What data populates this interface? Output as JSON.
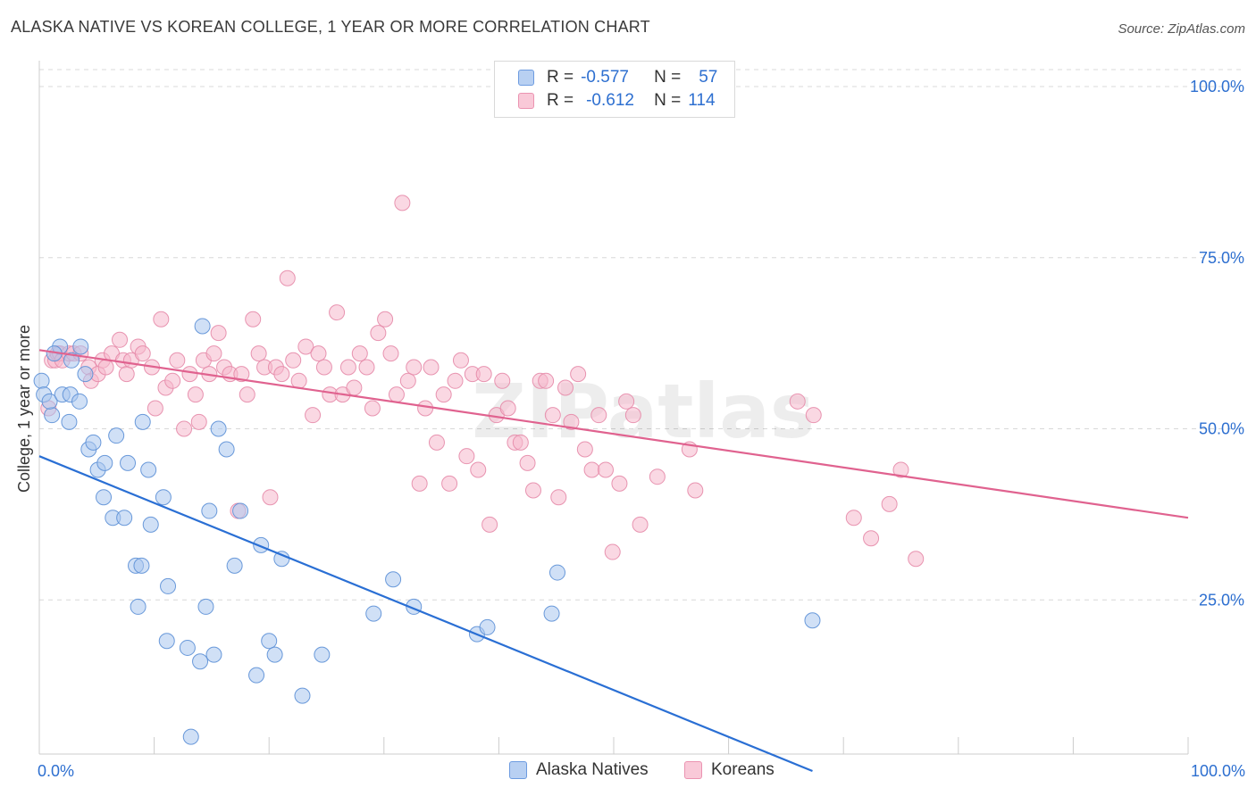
{
  "title": "ALASKA NATIVE VS KOREAN COLLEGE, 1 YEAR OR MORE CORRELATION CHART",
  "source": "Source: ZipAtlas.com",
  "watermark": "ZIPatlas",
  "legend_top": {
    "rows": [
      {
        "r_label": "R =",
        "r_value": "-0.577",
        "n_label": "N =",
        "n_value": "57"
      },
      {
        "r_label": "R =",
        "r_value": "-0.612",
        "n_label": "N =",
        "n_value": "114"
      }
    ]
  },
  "legend_bottom": [
    "Alaska Natives",
    "Koreans"
  ],
  "colors": {
    "blue_fill": "#a9c6ef",
    "blue_stroke": "#5b8fd6",
    "blue_line": "#2a6fd4",
    "pink_fill": "#f5b8cc",
    "pink_stroke": "#e68aa8",
    "pink_line": "#e0628f",
    "tick_label": "#2d6fd0",
    "grid": "#d8d8d8"
  },
  "chart_data": {
    "type": "scatter",
    "title": "ALASKA NATIVE VS KOREAN COLLEGE, 1 YEAR OR MORE CORRELATION CHART",
    "xlabel": "",
    "ylabel": "College, 1 year or more",
    "xlim": [
      0,
      100
    ],
    "ylim": [
      0,
      100
    ],
    "x_tick_labels": [
      "0.0%",
      "100.0%"
    ],
    "y_ticks": [
      25,
      50,
      75,
      100
    ],
    "y_tick_labels": [
      "25.0%",
      "50.0%",
      "75.0%",
      "100.0%"
    ],
    "grid": true,
    "legend_position": "bottom",
    "series": [
      {
        "name": "Alaska Natives",
        "r": -0.577,
        "n": 57,
        "trend": {
          "x": [
            0,
            67.3
          ],
          "y": [
            46,
            0
          ]
        },
        "points": [
          [
            0.2,
            57
          ],
          [
            0.4,
            55
          ],
          [
            1.1,
            52
          ],
          [
            0.9,
            54
          ],
          [
            1.8,
            62
          ],
          [
            2.0,
            55
          ],
          [
            2.7,
            55
          ],
          [
            2.6,
            51
          ],
          [
            3.5,
            54
          ],
          [
            3.6,
            62
          ],
          [
            4.0,
            58
          ],
          [
            4.3,
            47
          ],
          [
            4.7,
            48
          ],
          [
            5.1,
            44
          ],
          [
            5.7,
            45
          ],
          [
            5.6,
            40
          ],
          [
            6.4,
            37
          ],
          [
            6.7,
            49
          ],
          [
            7.4,
            37
          ],
          [
            7.7,
            45
          ],
          [
            8.4,
            30
          ],
          [
            8.6,
            24
          ],
          [
            8.9,
            30
          ],
          [
            9.0,
            51
          ],
          [
            9.5,
            44
          ],
          [
            9.7,
            36
          ],
          [
            10.8,
            40
          ],
          [
            11.2,
            27
          ],
          [
            11.1,
            19
          ],
          [
            12.9,
            18
          ],
          [
            13.2,
            5
          ],
          [
            14.0,
            16
          ],
          [
            14.2,
            65
          ],
          [
            14.5,
            24
          ],
          [
            14.8,
            38
          ],
          [
            15.2,
            17
          ],
          [
            15.6,
            50
          ],
          [
            16.3,
            47
          ],
          [
            17.0,
            30
          ],
          [
            17.5,
            38
          ],
          [
            18.9,
            14
          ],
          [
            19.3,
            33
          ],
          [
            20.0,
            19
          ],
          [
            20.5,
            17
          ],
          [
            21.1,
            31
          ],
          [
            22.9,
            11
          ],
          [
            24.6,
            17
          ],
          [
            29.1,
            23
          ],
          [
            30.8,
            28
          ],
          [
            32.6,
            24
          ],
          [
            38.1,
            20
          ],
          [
            39.0,
            21
          ],
          [
            44.6,
            23
          ],
          [
            45.1,
            29
          ],
          [
            67.3,
            22
          ],
          [
            1.3,
            61
          ],
          [
            2.8,
            60
          ]
        ]
      },
      {
        "name": "Koreans",
        "r": -0.612,
        "n": 114,
        "trend": {
          "x": [
            0,
            100
          ],
          "y": [
            61.5,
            37
          ]
        },
        "points": [
          [
            0.8,
            53
          ],
          [
            1.1,
            60
          ],
          [
            1.4,
            60
          ],
          [
            1.6,
            61
          ],
          [
            1.8,
            61
          ],
          [
            2.0,
            60
          ],
          [
            2.6,
            61
          ],
          [
            3.0,
            61
          ],
          [
            3.6,
            61
          ],
          [
            4.3,
            59
          ],
          [
            4.5,
            57
          ],
          [
            5.1,
            58
          ],
          [
            5.5,
            60
          ],
          [
            5.8,
            59
          ],
          [
            6.3,
            61
          ],
          [
            7.0,
            63
          ],
          [
            7.3,
            60
          ],
          [
            7.6,
            58
          ],
          [
            8.0,
            60
          ],
          [
            8.6,
            62
          ],
          [
            9.0,
            61
          ],
          [
            9.8,
            59
          ],
          [
            10.1,
            53
          ],
          [
            10.6,
            66
          ],
          [
            11.0,
            56
          ],
          [
            11.6,
            57
          ],
          [
            12.0,
            60
          ],
          [
            12.6,
            50
          ],
          [
            13.1,
            58
          ],
          [
            13.6,
            55
          ],
          [
            13.9,
            51
          ],
          [
            14.3,
            60
          ],
          [
            14.8,
            58
          ],
          [
            15.2,
            61
          ],
          [
            15.6,
            64
          ],
          [
            16.1,
            59
          ],
          [
            16.6,
            58
          ],
          [
            17.3,
            38
          ],
          [
            17.6,
            58
          ],
          [
            18.1,
            55
          ],
          [
            18.6,
            66
          ],
          [
            19.1,
            61
          ],
          [
            19.6,
            59
          ],
          [
            20.1,
            40
          ],
          [
            20.6,
            59
          ],
          [
            21.1,
            58
          ],
          [
            21.6,
            72
          ],
          [
            22.1,
            60
          ],
          [
            22.6,
            57
          ],
          [
            23.2,
            62
          ],
          [
            23.8,
            52
          ],
          [
            24.3,
            61
          ],
          [
            24.8,
            59
          ],
          [
            25.3,
            55
          ],
          [
            25.9,
            67
          ],
          [
            26.4,
            55
          ],
          [
            26.9,
            59
          ],
          [
            27.4,
            56
          ],
          [
            27.9,
            61
          ],
          [
            28.5,
            59
          ],
          [
            29.0,
            53
          ],
          [
            29.5,
            64
          ],
          [
            30.1,
            66
          ],
          [
            30.6,
            61
          ],
          [
            31.1,
            55
          ],
          [
            31.6,
            83
          ],
          [
            32.1,
            57
          ],
          [
            32.6,
            59
          ],
          [
            33.1,
            42
          ],
          [
            33.6,
            53
          ],
          [
            34.1,
            59
          ],
          [
            34.6,
            48
          ],
          [
            35.2,
            55
          ],
          [
            35.7,
            42
          ],
          [
            36.2,
            57
          ],
          [
            36.7,
            60
          ],
          [
            37.2,
            46
          ],
          [
            37.7,
            58
          ],
          [
            38.2,
            44
          ],
          [
            38.7,
            58
          ],
          [
            39.2,
            36
          ],
          [
            39.8,
            52
          ],
          [
            40.3,
            57
          ],
          [
            40.8,
            53
          ],
          [
            41.4,
            48
          ],
          [
            41.9,
            48
          ],
          [
            42.5,
            45
          ],
          [
            43.0,
            41
          ],
          [
            43.6,
            57
          ],
          [
            44.1,
            57
          ],
          [
            44.7,
            52
          ],
          [
            45.2,
            40
          ],
          [
            45.8,
            56
          ],
          [
            46.3,
            51
          ],
          [
            46.9,
            58
          ],
          [
            47.5,
            47
          ],
          [
            48.1,
            44
          ],
          [
            48.7,
            52
          ],
          [
            49.3,
            44
          ],
          [
            49.9,
            32
          ],
          [
            50.5,
            42
          ],
          [
            51.1,
            54
          ],
          [
            51.7,
            52
          ],
          [
            52.3,
            36
          ],
          [
            53.8,
            43
          ],
          [
            56.6,
            47
          ],
          [
            57.1,
            41
          ],
          [
            66.0,
            54
          ],
          [
            67.4,
            52
          ],
          [
            70.9,
            37
          ],
          [
            72.4,
            34
          ],
          [
            74.0,
            39
          ],
          [
            75.0,
            44
          ],
          [
            76.3,
            31
          ]
        ]
      }
    ]
  }
}
